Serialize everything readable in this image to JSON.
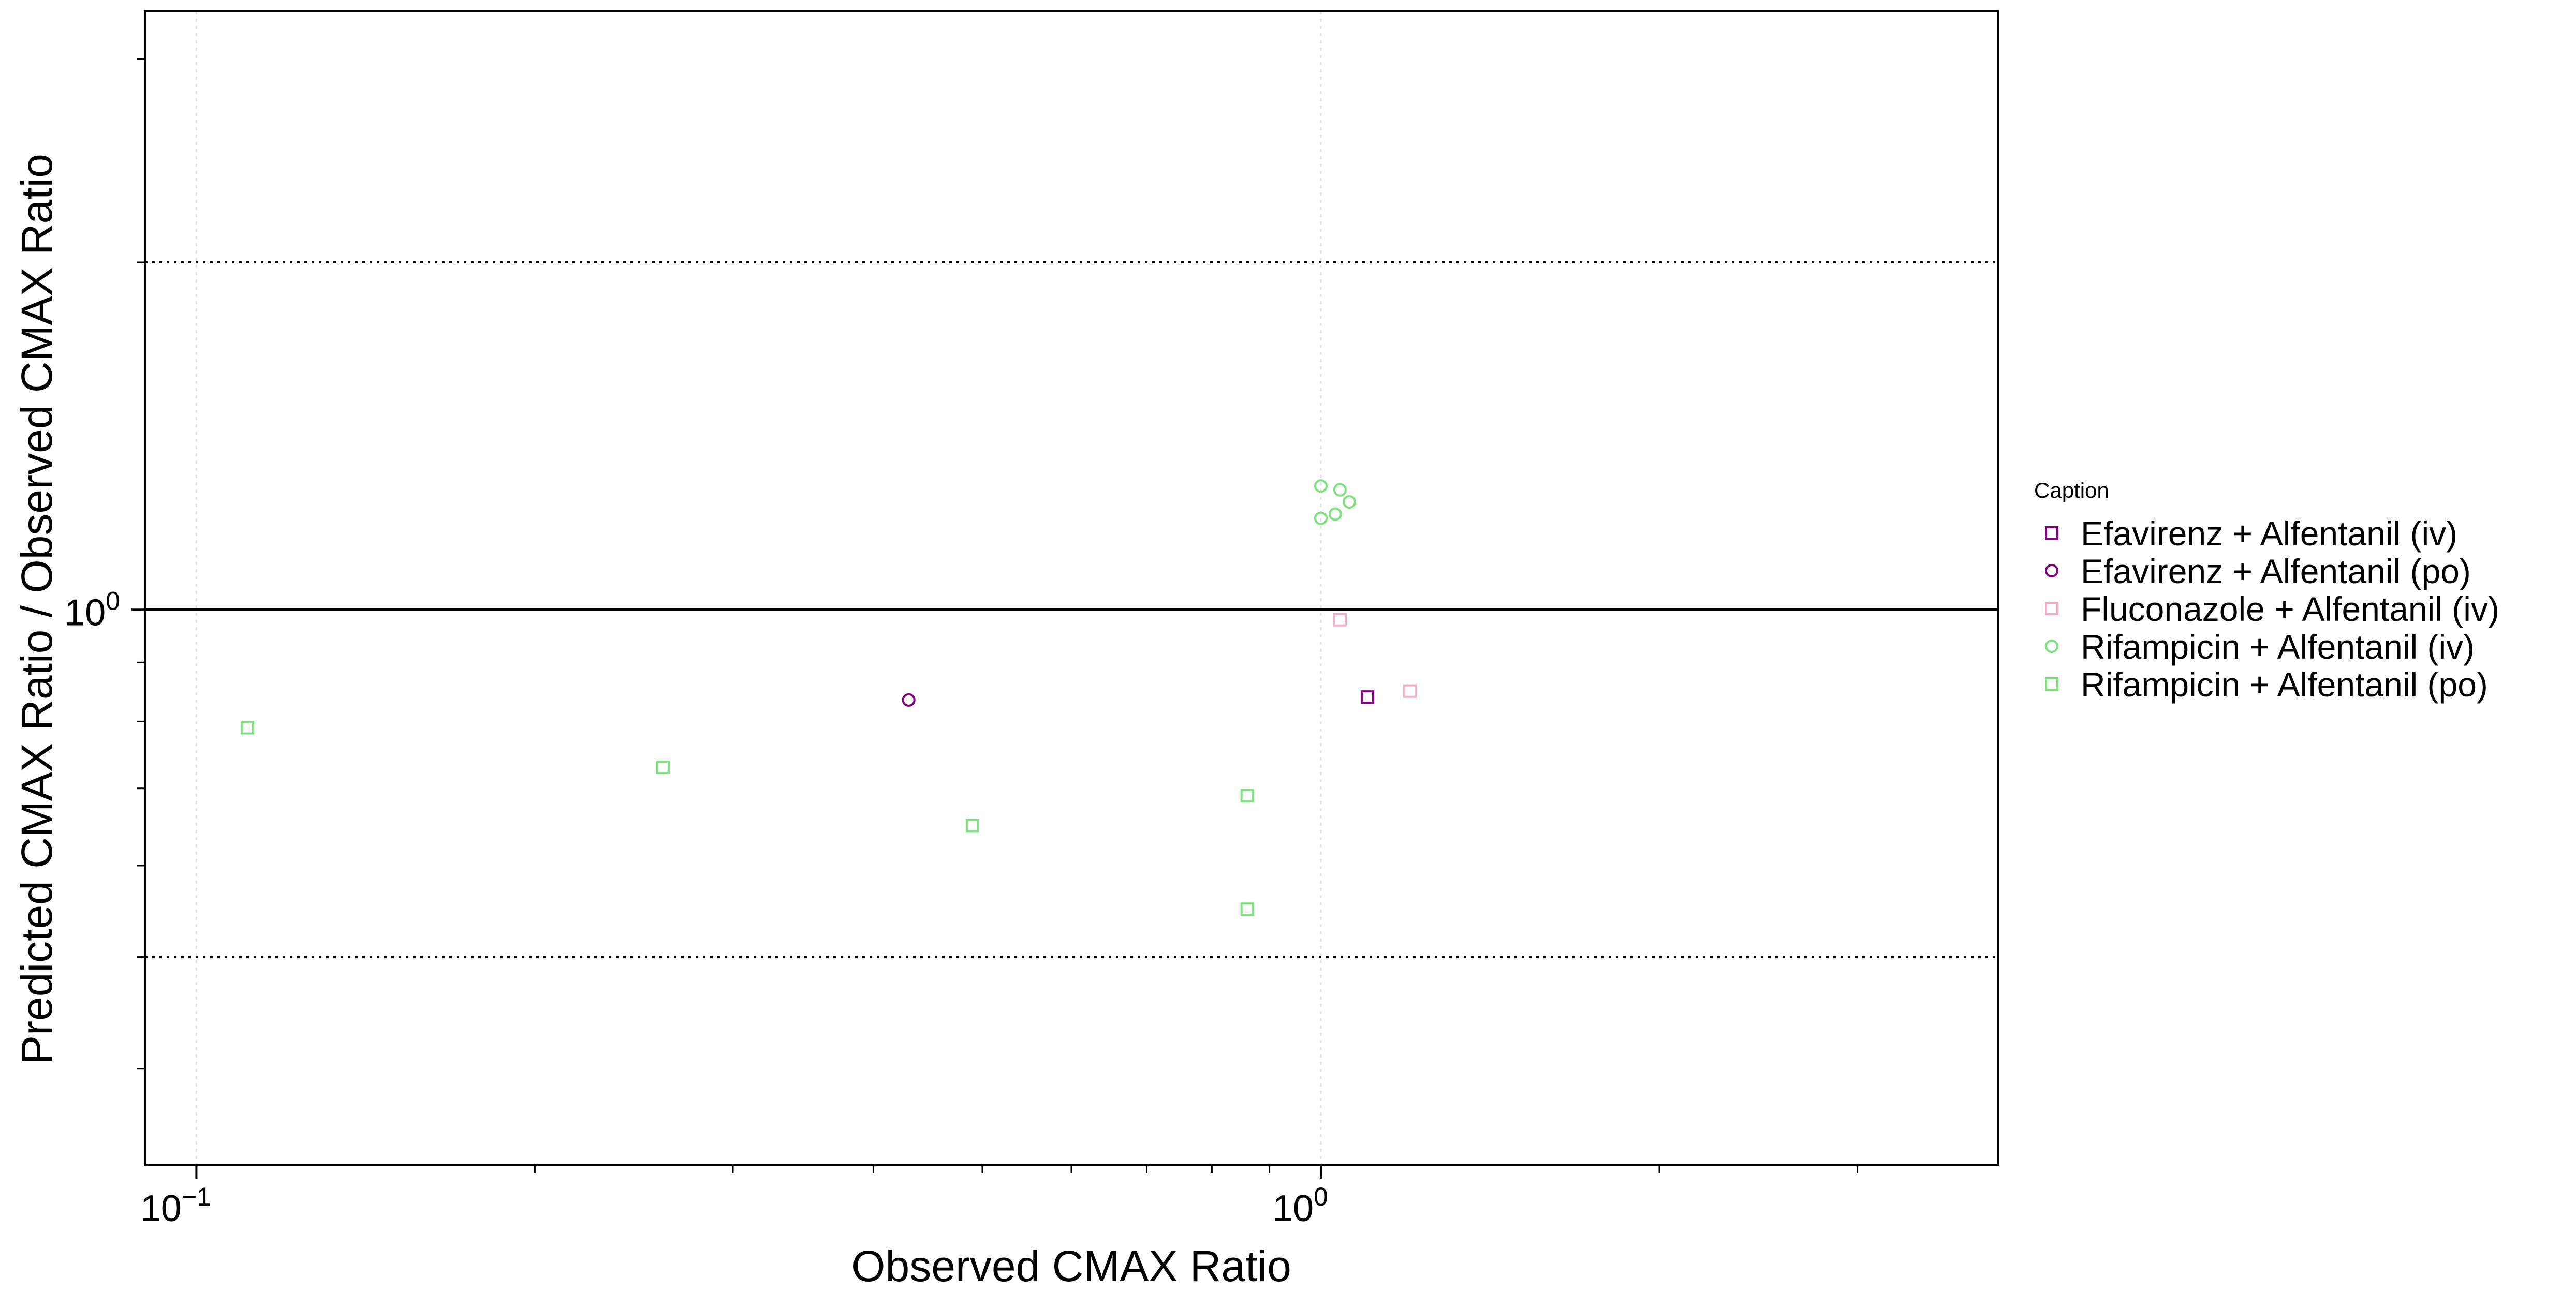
{
  "chart_data": {
    "type": "scatter",
    "title": "",
    "xlabel": "Observed CMAX Ratio",
    "ylabel": "Predicted CMAX Ratio / Observed CMAX Ratio",
    "x_scale": "log",
    "y_scale": "log",
    "xlim": [
      0.09,
      4.0
    ],
    "ylim": [
      0.33,
      3.3
    ],
    "x_ticks": [
      {
        "value": 0.1,
        "base": "10",
        "exp": "−1"
      },
      {
        "value": 1.0,
        "base": "10",
        "exp": "0"
      }
    ],
    "y_ticks": [
      {
        "value": 1.0,
        "base": "10",
        "exp": "0"
      }
    ],
    "grid": "major only, light dotted",
    "reference_lines": {
      "identity_y": 1.0,
      "fold_limits_y": [
        0.5,
        2.0
      ],
      "guest_limit_curves": true
    },
    "legend": {
      "title": "Caption",
      "position": "right",
      "entries": [
        {
          "label": "Efavirenz + Alfentanil (iv)",
          "marker": "square",
          "color": "#800080"
        },
        {
          "label": "Efavirenz + Alfentanil (po)",
          "marker": "circle",
          "color": "#800080"
        },
        {
          "label": "Fluconazole + Alfentanil (iv)",
          "marker": "square",
          "color": "#f0b0c8"
        },
        {
          "label": "Rifampicin + Alfentanil (iv)",
          "marker": "circle",
          "color": "#7de27d"
        },
        {
          "label": "Rifampicin + Alfentanil (po)",
          "marker": "square",
          "color": "#7de27d"
        }
      ]
    },
    "series": [
      {
        "name": "Efavirenz + Alfentanil (iv)",
        "marker": "square",
        "color": "#800080",
        "points": [
          {
            "x": 1.1,
            "y": 0.84
          }
        ]
      },
      {
        "name": "Efavirenz + Alfentanil (po)",
        "marker": "circle",
        "color": "#800080",
        "points": [
          {
            "x": 0.43,
            "y": 0.835
          }
        ]
      },
      {
        "name": "Fluconazole + Alfentanil (iv)",
        "marker": "square",
        "color": "#f0b0c8",
        "points": [
          {
            "x": 1.04,
            "y": 0.98
          },
          {
            "x": 1.2,
            "y": 0.85
          }
        ]
      },
      {
        "name": "Rifampicin + Alfentanil (iv)",
        "marker": "circle",
        "color": "#7de27d",
        "points": [
          {
            "x": 1.0,
            "y": 1.28
          },
          {
            "x": 1.04,
            "y": 1.27
          },
          {
            "x": 1.06,
            "y": 1.24
          },
          {
            "x": 1.0,
            "y": 1.2
          },
          {
            "x": 1.03,
            "y": 1.21
          }
        ]
      },
      {
        "name": "Rifampicin + Alfentanil (po)",
        "marker": "square",
        "color": "#7de27d",
        "points": [
          {
            "x": 0.111,
            "y": 0.79
          },
          {
            "x": 0.26,
            "y": 0.73
          },
          {
            "x": 0.49,
            "y": 0.65
          },
          {
            "x": 0.86,
            "y": 0.69
          },
          {
            "x": 0.86,
            "y": 0.55
          }
        ]
      }
    ]
  }
}
